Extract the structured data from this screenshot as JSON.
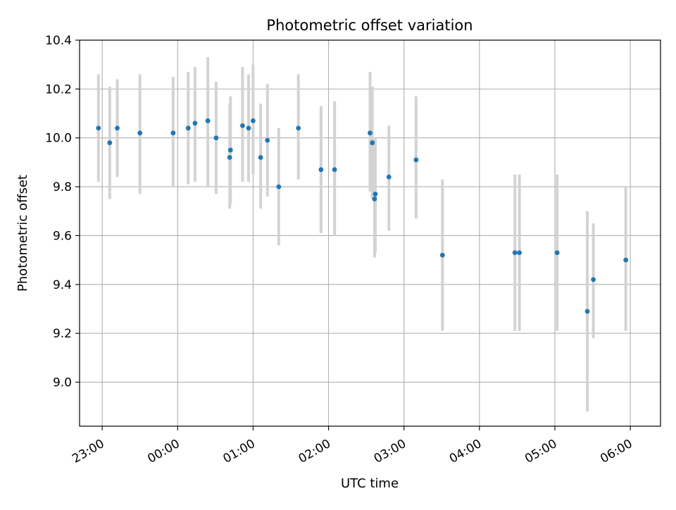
{
  "chart_data": {
    "type": "scatter",
    "title": "Photometric offset variation",
    "xlabel": "UTC time",
    "ylabel": "Photometric offset",
    "x_unit": "UTC time of day (hours after 00:00; previous-evening points negative)",
    "xlim": [
      -1.3,
      6.4
    ],
    "ylim": [
      8.82,
      10.4
    ],
    "grid": true,
    "x_ticks": [
      {
        "value": -1,
        "label": "23:00"
      },
      {
        "value": 0,
        "label": "00:00"
      },
      {
        "value": 1,
        "label": "01:00"
      },
      {
        "value": 2,
        "label": "02:00"
      },
      {
        "value": 3,
        "label": "03:00"
      },
      {
        "value": 4,
        "label": "04:00"
      },
      {
        "value": 5,
        "label": "05:00"
      },
      {
        "value": 6,
        "label": "06:00"
      }
    ],
    "y_ticks": [
      {
        "value": 9.0,
        "label": "9.0"
      },
      {
        "value": 9.2,
        "label": "9.2"
      },
      {
        "value": 9.4,
        "label": "9.4"
      },
      {
        "value": 9.6,
        "label": "9.6"
      },
      {
        "value": 9.8,
        "label": "9.8"
      },
      {
        "value": 10.0,
        "label": "10.0"
      },
      {
        "value": 10.2,
        "label": "10.2"
      },
      {
        "value": 10.4,
        "label": "10.4"
      }
    ],
    "colors": {
      "point": "#1f77b4",
      "errorbar": "#d3d3d3",
      "grid": "#b0b0b0"
    },
    "points": [
      {
        "x": -1.05,
        "y": 10.04,
        "ylo": 9.82,
        "yhi": 10.26
      },
      {
        "x": -0.9,
        "y": 9.98,
        "ylo": 9.75,
        "yhi": 10.21
      },
      {
        "x": -0.8,
        "y": 10.04,
        "ylo": 9.84,
        "yhi": 10.24
      },
      {
        "x": -0.5,
        "y": 10.02,
        "ylo": 9.77,
        "yhi": 10.26
      },
      {
        "x": -0.06,
        "y": 10.02,
        "ylo": 9.8,
        "yhi": 10.25
      },
      {
        "x": 0.14,
        "y": 10.04,
        "ylo": 9.81,
        "yhi": 10.27
      },
      {
        "x": 0.23,
        "y": 10.06,
        "ylo": 9.82,
        "yhi": 10.29
      },
      {
        "x": 0.4,
        "y": 10.07,
        "ylo": 9.8,
        "yhi": 10.33
      },
      {
        "x": 0.51,
        "y": 10.0,
        "ylo": 9.77,
        "yhi": 10.23
      },
      {
        "x": 0.69,
        "y": 9.92,
        "ylo": 9.71,
        "yhi": 10.14
      },
      {
        "x": 0.7,
        "y": 9.95,
        "ylo": 9.73,
        "yhi": 10.17
      },
      {
        "x": 0.86,
        "y": 10.05,
        "ylo": 9.82,
        "yhi": 10.29
      },
      {
        "x": 0.94,
        "y": 10.04,
        "ylo": 9.82,
        "yhi": 10.26
      },
      {
        "x": 1.0,
        "y": 10.07,
        "ylo": 9.85,
        "yhi": 10.3
      },
      {
        "x": 1.1,
        "y": 9.92,
        "ylo": 9.71,
        "yhi": 10.14
      },
      {
        "x": 1.19,
        "y": 9.99,
        "ylo": 9.76,
        "yhi": 10.22
      },
      {
        "x": 1.34,
        "y": 9.8,
        "ylo": 9.56,
        "yhi": 10.04
      },
      {
        "x": 1.6,
        "y": 10.04,
        "ylo": 9.83,
        "yhi": 10.26
      },
      {
        "x": 1.9,
        "y": 9.87,
        "ylo": 9.61,
        "yhi": 10.13
      },
      {
        "x": 2.08,
        "y": 9.87,
        "ylo": 9.6,
        "yhi": 10.15
      },
      {
        "x": 2.55,
        "y": 10.02,
        "ylo": 9.78,
        "yhi": 10.27
      },
      {
        "x": 2.58,
        "y": 9.98,
        "ylo": 9.75,
        "yhi": 10.21
      },
      {
        "x": 2.61,
        "y": 9.75,
        "ylo": 9.51,
        "yhi": 9.99
      },
      {
        "x": 2.62,
        "y": 9.77,
        "ylo": 9.53,
        "yhi": 10.0
      },
      {
        "x": 2.8,
        "y": 9.84,
        "ylo": 9.62,
        "yhi": 10.05
      },
      {
        "x": 3.16,
        "y": 9.91,
        "ylo": 9.67,
        "yhi": 10.17
      },
      {
        "x": 3.51,
        "y": 9.52,
        "ylo": 9.21,
        "yhi": 9.83
      },
      {
        "x": 4.47,
        "y": 9.53,
        "ylo": 9.21,
        "yhi": 9.85
      },
      {
        "x": 4.53,
        "y": 9.53,
        "ylo": 9.21,
        "yhi": 9.85
      },
      {
        "x": 5.03,
        "y": 9.53,
        "ylo": 9.21,
        "yhi": 9.85
      },
      {
        "x": 5.43,
        "y": 9.29,
        "ylo": 8.88,
        "yhi": 9.7
      },
      {
        "x": 5.51,
        "y": 9.42,
        "ylo": 9.18,
        "yhi": 9.65
      },
      {
        "x": 5.94,
        "y": 9.5,
        "ylo": 9.21,
        "yhi": 9.8
      }
    ]
  }
}
